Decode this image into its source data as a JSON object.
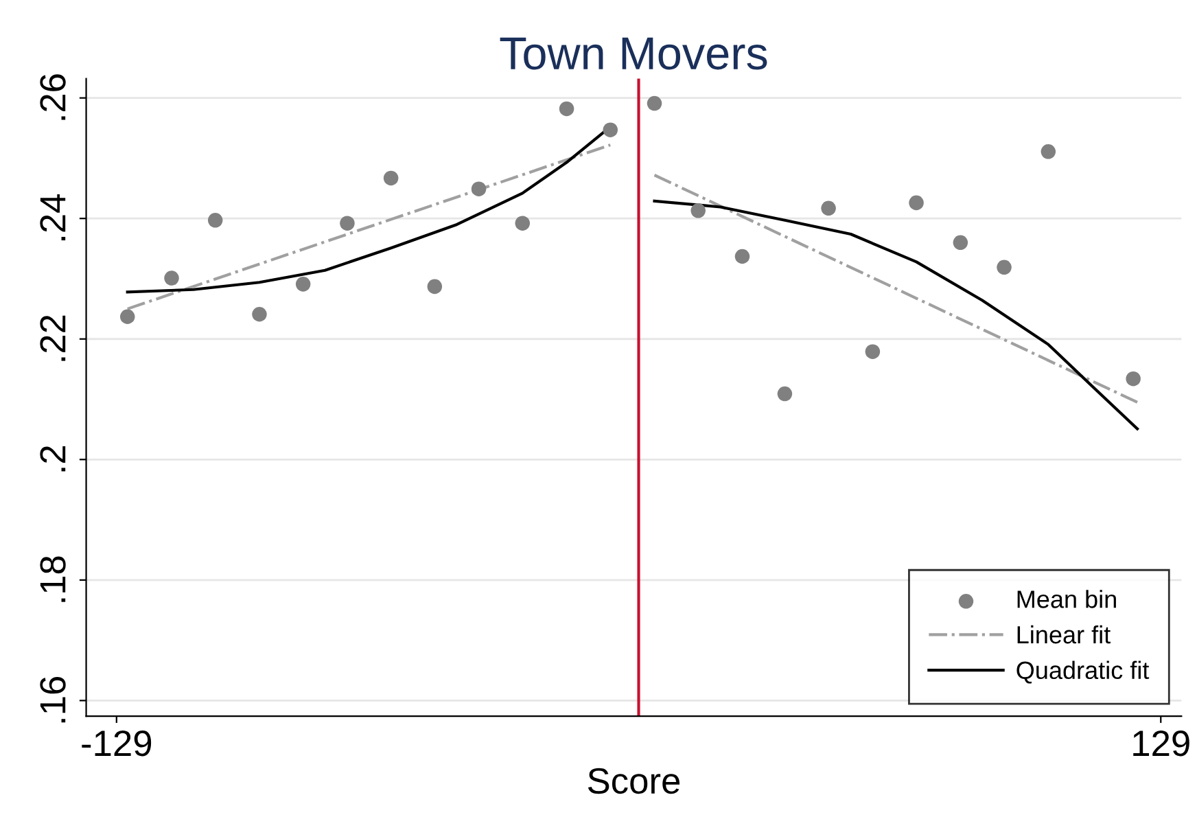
{
  "chart_data": {
    "type": "scatter",
    "title": "Town Movers",
    "xlabel": "Score",
    "series": [
      {
        "name": "Mean bin",
        "color": "#808080",
        "marker": "circle",
        "x": [
          -126.3,
          -115.4,
          -104.6,
          -93.7,
          -82.9,
          -72.0,
          -61.2,
          -50.4,
          -39.5,
          -28.7,
          -17.8,
          -7.0,
          3.9,
          14.7,
          25.6,
          36.1,
          46.9,
          57.8,
          68.6,
          79.5,
          90.3,
          101.2,
          122.2
        ],
        "values": [
          0.2237,
          0.2301,
          0.2397,
          0.2241,
          0.2291,
          0.2392,
          0.2467,
          0.2287,
          0.2449,
          0.2392,
          0.2582,
          0.2547,
          0.2591,
          0.2413,
          0.2337,
          0.2109,
          0.2417,
          0.2179,
          0.2426,
          0.236,
          0.2319,
          0.2511,
          0.2134
        ]
      },
      {
        "name": "Linear fit",
        "type": "line",
        "color": "#a0a0a0",
        "line_style": "dashdot",
        "x": [
          -126.3,
          -7.0
        ],
        "values": [
          0.225,
          0.2522
        ]
      },
      {
        "type": "line",
        "color": "#a0a0a0",
        "line_style": "dashdot",
        "x": [
          3.9,
          123.2
        ],
        "values": [
          0.2472,
          0.2095
        ]
      },
      {
        "name": "Quadratic fit",
        "type": "line",
        "color": "#000000",
        "line_style": "solid",
        "x": [
          -126.3,
          -110.0,
          -93.7,
          -77.5,
          -61.2,
          -44.9,
          -28.7,
          -17.8,
          -7.0
        ],
        "values": [
          0.2278,
          0.2282,
          0.2294,
          0.2314,
          0.2351,
          0.239,
          0.2442,
          0.2493,
          0.2552
        ]
      },
      {
        "type": "line",
        "color": "#000000",
        "line_style": "solid",
        "x": [
          3.9,
          20.2,
          36.1,
          52.4,
          68.6,
          84.9,
          101.2,
          112.0,
          123.2
        ],
        "values": [
          0.2429,
          0.2419,
          0.2397,
          0.2374,
          0.2328,
          0.2264,
          0.2191,
          0.2122,
          0.2051
        ]
      }
    ],
    "ref_lines": [
      {
        "axis": "x",
        "value": 0,
        "color": "#c8102e"
      }
    ],
    "xlim": [
      -136.5,
      134.1
    ],
    "xticks": [
      {
        "value": -129,
        "label": "-129"
      },
      {
        "value": 129,
        "label": "129"
      }
    ],
    "ylim": [
      0.1574,
      0.2632
    ],
    "yticks": [
      {
        "value": 0.16,
        "label": ".16"
      },
      {
        "value": 0.18,
        "label": ".18"
      },
      {
        "value": 0.2,
        "label": ".2"
      },
      {
        "value": 0.22,
        "label": ".22"
      },
      {
        "value": 0.24,
        "label": ".24"
      },
      {
        "value": 0.26,
        "label": ".26"
      }
    ],
    "grid": "y",
    "legend": "bottom right"
  }
}
